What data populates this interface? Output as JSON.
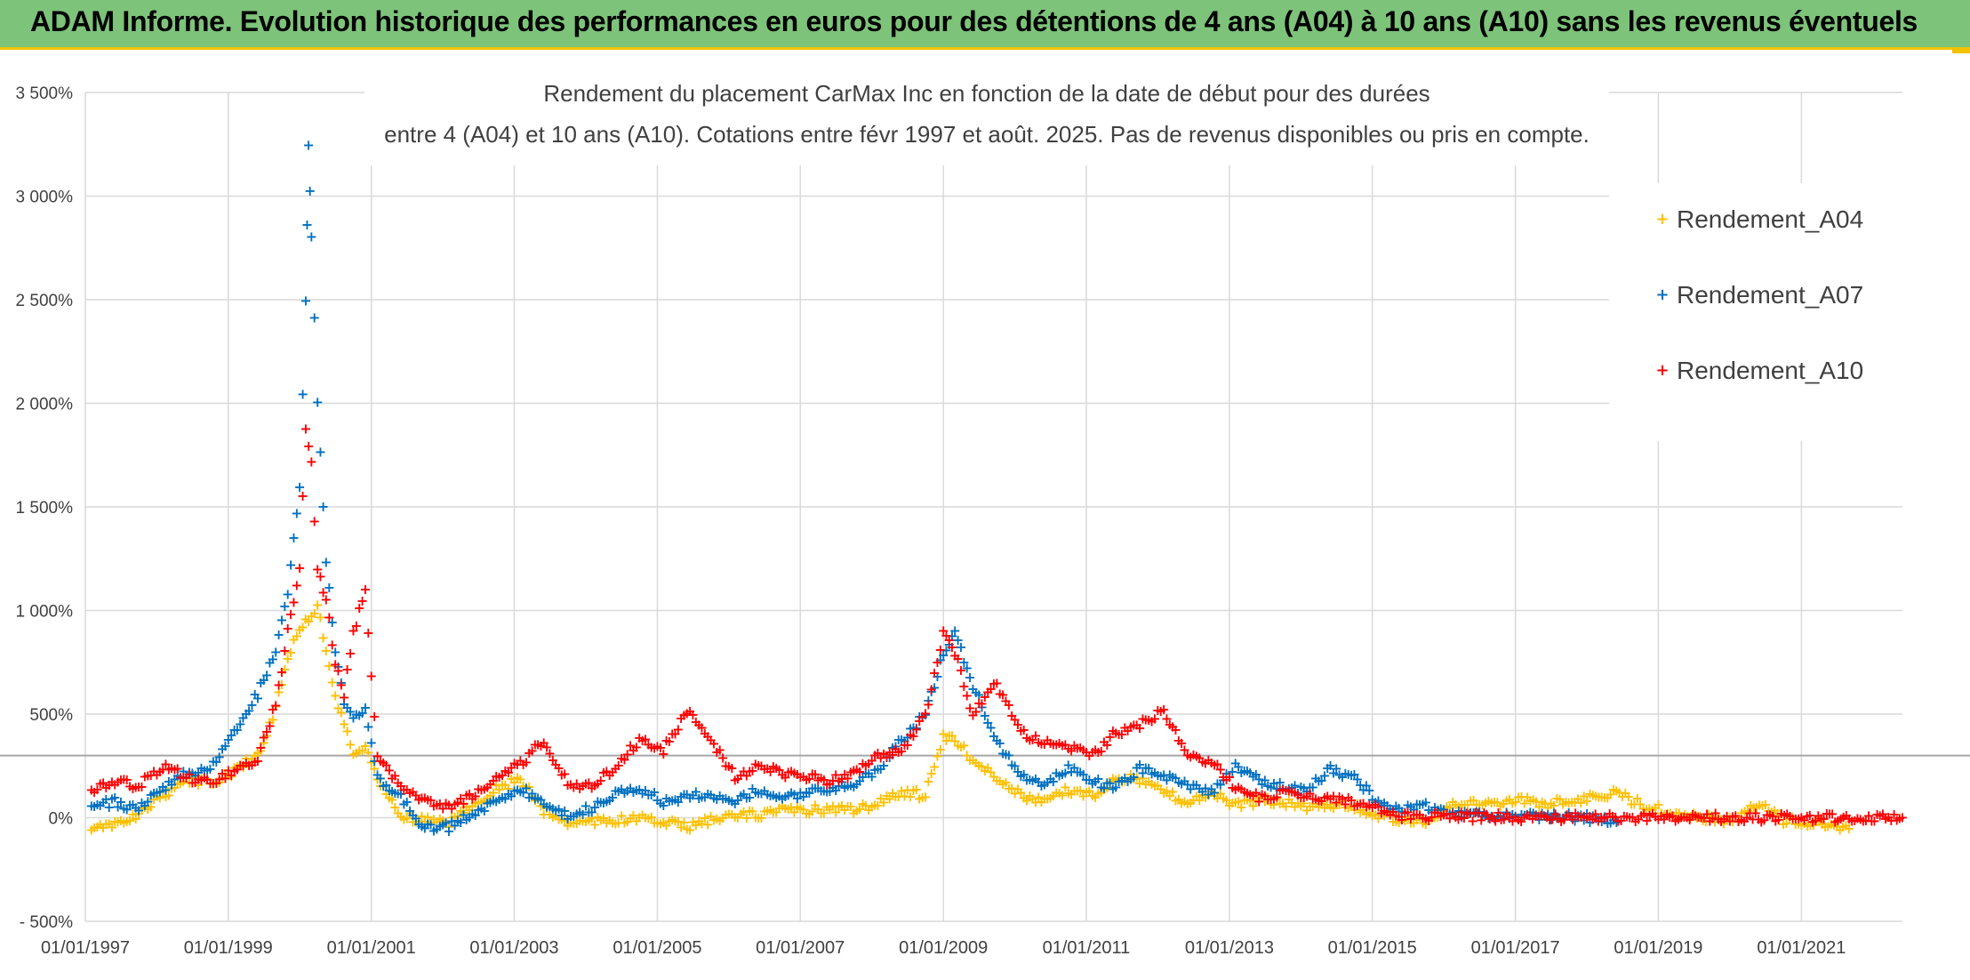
{
  "banner": {
    "title": "ADAM Informe. Evolution historique des performances en euros pour des détentions de 4 ans (A04) à 10 ans (A10) sans les revenus éventuels"
  },
  "chart_data": {
    "type": "scatter",
    "title_line1": "Rendement du placement CarMax Inc en fonction de la date de début pour des durées",
    "title_line2": "entre 4 (A04) et 10 ans (A10). Cotations entre févr 1997 et août. 2025. Pas de revenus disponibles ou pris en compte.",
    "marker": "+",
    "ylim": [
      -500,
      3500
    ],
    "yticks": [
      -500,
      0,
      500,
      1000,
      1500,
      2000,
      2500,
      3000,
      3500
    ],
    "ytick_labels": [
      "- 500%",
      "0%",
      "500%",
      "1 000%",
      "1 500%",
      "2 000%",
      "2 500%",
      "3 000%",
      "3 500%"
    ],
    "xlim": [
      "1997-01-01",
      "2022-06-01"
    ],
    "xticks": [
      "1997-01-01",
      "1999-01-01",
      "2001-01-01",
      "2003-01-01",
      "2005-01-01",
      "2007-01-01",
      "2009-01-01",
      "2011-01-01",
      "2013-01-01",
      "2015-01-01",
      "2017-01-01",
      "2019-01-01",
      "2021-01-01"
    ],
    "xtick_labels": [
      "01/01/1997",
      "01/01/1999",
      "01/01/2001",
      "01/01/2003",
      "01/01/2005",
      "01/01/2007",
      "01/01/2009",
      "01/01/2011",
      "01/01/2013",
      "01/01/2015",
      "01/01/2017",
      "01/01/2019",
      "01/01/2021"
    ],
    "reference_line": 300,
    "grid": true,
    "legend_position": "right",
    "series": [
      {
        "name": "Rendement_A04",
        "color": "#ffc000",
        "x": [
          "1997-02-01",
          "1997-06-01",
          "1997-10-01",
          "1998-02-01",
          "1998-06-01",
          "1998-10-01",
          "1999-02-01",
          "1999-06-01",
          "1999-09-01",
          "1999-11-01",
          "2000-01-01",
          "2000-02-15",
          "2000-04-01",
          "2000-05-15",
          "2000-07-01",
          "2000-08-15",
          "2000-10-01",
          "2000-12-01",
          "2001-02-01",
          "2001-06-01",
          "2001-10-01",
          "2002-02-01",
          "2002-06-01",
          "2002-10-01",
          "2003-02-01",
          "2003-06-01",
          "2003-10-01",
          "2004-02-01",
          "2004-06-01",
          "2004-10-01",
          "2005-02-01",
          "2005-06-01",
          "2005-10-01",
          "2006-02-01",
          "2006-06-01",
          "2006-10-01",
          "2007-02-01",
          "2007-06-01",
          "2007-10-01",
          "2008-02-01",
          "2008-06-01",
          "2008-10-01",
          "2009-01-01",
          "2009-03-01",
          "2009-06-01",
          "2009-10-01",
          "2010-02-01",
          "2010-06-01",
          "2010-10-01",
          "2011-02-01",
          "2011-06-01",
          "2011-10-01",
          "2012-02-01",
          "2012-06-01",
          "2012-10-01",
          "2013-02-01",
          "2013-06-01",
          "2013-10-01",
          "2014-02-01",
          "2014-06-01",
          "2014-10-01",
          "2015-02-01",
          "2015-06-01",
          "2015-10-01",
          "2016-02-01",
          "2016-06-01",
          "2016-10-01",
          "2017-02-01",
          "2017-06-01",
          "2017-10-01",
          "2018-02-01",
          "2018-06-01",
          "2018-10-01",
          "2019-02-01",
          "2019-06-01",
          "2019-10-01",
          "2020-02-01",
          "2020-06-01",
          "2020-10-01",
          "2021-02-01",
          "2021-06-01",
          "2021-09-01"
        ],
        "values": [
          -60,
          -30,
          20,
          110,
          190,
          170,
          230,
          310,
          530,
          780,
          920,
          960,
          1020,
          820,
          600,
          450,
          300,
          360,
          180,
          20,
          -10,
          -20,
          70,
          140,
          190,
          40,
          -20,
          -10,
          -10,
          0,
          -20,
          -40,
          -10,
          10,
          20,
          40,
          40,
          50,
          40,
          70,
          130,
          110,
          400,
          380,
          280,
          200,
          110,
          80,
          140,
          110,
          200,
          190,
          130,
          80,
          130,
          60,
          90,
          80,
          60,
          70,
          60,
          10,
          0,
          -20,
          60,
          70,
          60,
          90,
          70,
          80,
          110,
          120,
          70,
          40,
          10,
          0,
          -10,
          80,
          -10,
          -20,
          -30,
          -50
        ]
      },
      {
        "name": "Rendement_A07",
        "color": "#0070c0",
        "x": [
          "1997-02-01",
          "1997-06-01",
          "1997-10-01",
          "1998-02-01",
          "1998-06-01",
          "1998-10-01",
          "1999-02-01",
          "1999-06-01",
          "1999-09-01",
          "1999-11-01",
          "2000-01-01",
          "2000-02-01",
          "2000-02-15",
          "2000-03-01",
          "2000-04-01",
          "2000-05-15",
          "2000-07-01",
          "2000-08-15",
          "2000-10-01",
          "2000-12-01",
          "2001-02-01",
          "2001-06-01",
          "2001-10-01",
          "2002-02-01",
          "2002-06-01",
          "2002-10-01",
          "2003-02-01",
          "2003-06-01",
          "2003-10-01",
          "2004-02-01",
          "2004-06-01",
          "2004-10-01",
          "2005-02-01",
          "2005-06-01",
          "2005-10-01",
          "2006-02-01",
          "2006-06-01",
          "2006-10-01",
          "2007-02-01",
          "2007-06-01",
          "2007-10-01",
          "2008-02-01",
          "2008-06-01",
          "2008-10-01",
          "2009-01-01",
          "2009-03-01",
          "2009-06-01",
          "2009-10-01",
          "2010-02-01",
          "2010-06-01",
          "2010-10-01",
          "2011-02-01",
          "2011-06-01",
          "2011-10-01",
          "2012-02-01",
          "2012-06-01",
          "2012-10-01",
          "2013-02-01",
          "2013-06-01",
          "2013-10-01",
          "2014-02-01",
          "2014-06-01",
          "2014-10-01",
          "2015-02-01",
          "2015-06-01",
          "2015-10-01",
          "2016-02-01",
          "2016-06-01",
          "2016-10-01",
          "2017-02-01",
          "2017-06-01",
          "2017-10-01",
          "2018-02-01",
          "2018-06-01"
        ],
        "values": [
          60,
          80,
          40,
          150,
          220,
          240,
          420,
          600,
          800,
          1100,
          1600,
          2500,
          3240,
          2800,
          2000,
          1250,
          800,
          550,
          480,
          520,
          200,
          100,
          -50,
          -40,
          20,
          80,
          140,
          80,
          10,
          50,
          120,
          150,
          80,
          100,
          120,
          90,
          140,
          110,
          120,
          150,
          160,
          240,
          380,
          500,
          800,
          900,
          640,
          380,
          200,
          160,
          250,
          180,
          150,
          240,
          200,
          160,
          120,
          250,
          190,
          150,
          140,
          240,
          200,
          80,
          40,
          60,
          20,
          20,
          10,
          10,
          10,
          10,
          0,
          -20
        ]
      },
      {
        "name": "Rendement_A10",
        "color": "#ff0000",
        "x": [
          "1997-02-01",
          "1997-06-01",
          "1997-10-01",
          "1998-02-01",
          "1998-06-01",
          "1998-10-01",
          "1999-02-01",
          "1999-06-01",
          "1999-09-01",
          "1999-11-01",
          "2000-01-01",
          "2000-02-01",
          "2000-03-01",
          "2000-04-01",
          "2000-05-15",
          "2000-07-01",
          "2000-08-15",
          "2000-10-01",
          "2000-12-01",
          "2001-02-01",
          "2001-06-01",
          "2001-10-01",
          "2002-02-01",
          "2002-06-01",
          "2002-10-01",
          "2003-02-01",
          "2003-06-01",
          "2003-10-01",
          "2004-02-01",
          "2004-06-01",
          "2004-10-01",
          "2005-02-01",
          "2005-06-01",
          "2005-10-01",
          "2006-02-01",
          "2006-06-01",
          "2006-10-01",
          "2007-02-01",
          "2007-06-01",
          "2007-10-01",
          "2008-02-01",
          "2008-06-01",
          "2008-10-01",
          "2009-01-01",
          "2009-03-01",
          "2009-06-01",
          "2009-10-01",
          "2010-02-01",
          "2010-06-01",
          "2010-10-01",
          "2011-02-01",
          "2011-06-01",
          "2011-10-01",
          "2012-02-01",
          "2012-06-01",
          "2012-10-01",
          "2013-02-01",
          "2013-06-01",
          "2013-10-01",
          "2014-02-01",
          "2014-06-01",
          "2014-10-01",
          "2015-02-01",
          "2015-06-01",
          "2015-10-01",
          "2016-02-01",
          "2017-01-01",
          "2018-01-01",
          "2019-01-01",
          "2020-01-01",
          "2021-01-01",
          "2022-06-01"
        ],
        "values": [
          140,
          180,
          160,
          250,
          200,
          170,
          230,
          280,
          550,
          900,
          1200,
          1900,
          1700,
          1200,
          1050,
          750,
          600,
          900,
          1100,
          300,
          150,
          80,
          60,
          110,
          200,
          260,
          380,
          170,
          160,
          250,
          380,
          330,
          520,
          380,
          200,
          250,
          220,
          200,
          180,
          220,
          300,
          320,
          500,
          900,
          800,
          500,
          650,
          420,
          360,
          350,
          300,
          420,
          450,
          520,
          300,
          280,
          150,
          100,
          120,
          110,
          100,
          80,
          40,
          10,
          10,
          10,
          5,
          5,
          5,
          5,
          5,
          5
        ]
      }
    ]
  }
}
